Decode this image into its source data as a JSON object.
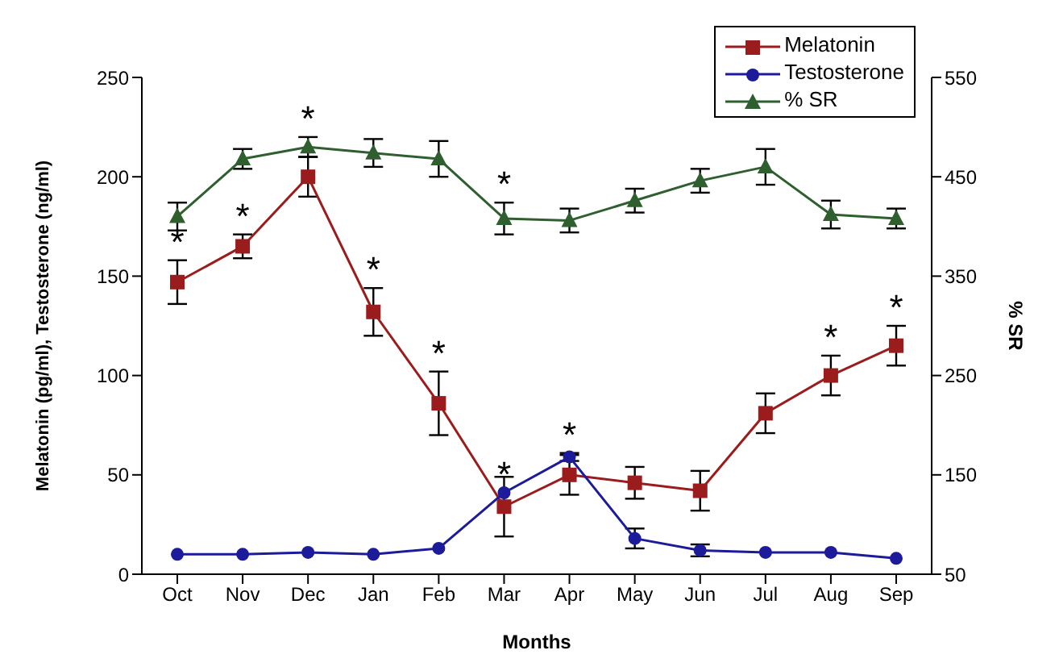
{
  "chart_data": {
    "type": "line",
    "xlabel": "Months",
    "ylabel": "Melatonin (pg/ml), Testosterone (ng/ml)",
    "y2label": "% SR",
    "categories": [
      "Oct",
      "Nov",
      "Dec",
      "Jan",
      "Feb",
      "Mar",
      "Apr",
      "May",
      "Jun",
      "Jul",
      "Aug",
      "Sep"
    ],
    "series": [
      {
        "name": "Melatonin",
        "color": "#9b1c1c",
        "marker": "square",
        "values": [
          147,
          165,
          200,
          132,
          86,
          34,
          50,
          46,
          42,
          81,
          100,
          115
        ],
        "errors": [
          11,
          6,
          10,
          12,
          16,
          15,
          10,
          8,
          10,
          10,
          10,
          10
        ]
      },
      {
        "name": "Testosterone",
        "color": "#1c1c9b",
        "marker": "circle",
        "values": [
          10,
          10,
          11,
          10,
          13,
          41,
          59,
          18,
          12,
          11,
          11,
          8
        ],
        "errors": [
          null,
          null,
          null,
          null,
          null,
          null,
          2,
          5,
          3,
          null,
          null,
          null
        ]
      },
      {
        "name": "% SR",
        "color": "#2f5f2f",
        "marker": "triangle",
        "axis": "y2",
        "values": [
          410,
          468,
          480,
          474,
          468,
          408,
          406,
          426,
          446,
          460,
          412,
          408
        ],
        "errors": [
          14,
          10,
          10,
          14,
          18,
          16,
          12,
          12,
          12,
          18,
          14,
          10
        ]
      }
    ],
    "ylim": [
      0,
      250
    ],
    "yticks": [
      0,
      50,
      100,
      150,
      200,
      250
    ],
    "y2lim": [
      50,
      550
    ],
    "y2ticks": [
      50,
      150,
      250,
      350,
      450,
      550
    ],
    "grid": false,
    "legend": "top right",
    "annotations": [
      {
        "text": "*",
        "x": "Oct",
        "y": 147
      },
      {
        "text": "*",
        "x": "Nov",
        "y": 165
      },
      {
        "text": "*",
        "x": "Dec",
        "y": 215
      },
      {
        "text": "*",
        "x": "Jan",
        "y": 132
      },
      {
        "text": "*",
        "x": "Feb",
        "y": 86
      },
      {
        "text": "*",
        "x": "Mar",
        "y": 179
      },
      {
        "text": "*",
        "x": "Mar",
        "y": 41
      },
      {
        "text": "*",
        "x": "Apr",
        "y": 59
      },
      {
        "text": "*",
        "x": "Aug",
        "y": 100
      },
      {
        "text": "*",
        "x": "Sep",
        "y": 115
      }
    ]
  }
}
